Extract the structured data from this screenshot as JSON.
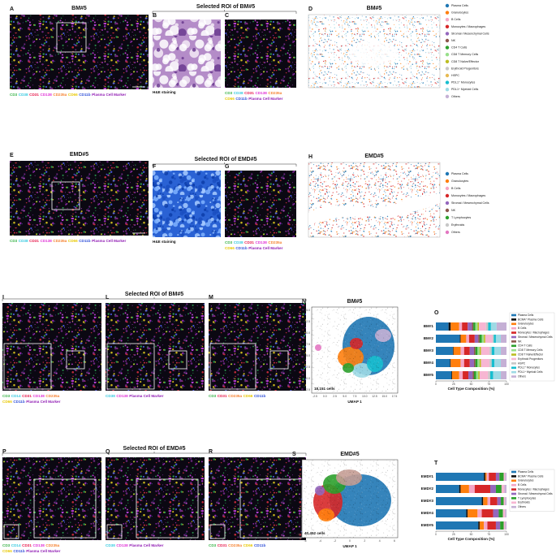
{
  "figure": {
    "roi_titles": [
      "Selected ROI of BM#5",
      "Selected ROI of EMD#5",
      "Selected ROI of BM#5",
      "Selected ROI of EMD#5"
    ],
    "panels": [
      {
        "label": "A",
        "title": "BM#5",
        "scale": "100 µm",
        "markers": [
          [
            {
              "text": "CD3",
              "color": "#3cb44b"
            },
            {
              "text": "CD38",
              "color": "#36c9e0"
            },
            {
              "text": "CD31",
              "color": "#e6194b"
            },
            {
              "text": "CD138",
              "color": "#e032d6"
            },
            {
              "text": "CD235a",
              "color": "#f58231"
            },
            {
              "text": "CD66",
              "color": "#e8c800"
            },
            {
              "text": "CD11b",
              "color": "#3050d8"
            },
            {
              "text": "Plasma Cell Marker",
              "color": "#911eb4"
            }
          ]
        ]
      },
      {
        "label": "B",
        "caption": "H&E staining"
      },
      {
        "label": "C",
        "markers": [
          [
            {
              "text": "CD3",
              "color": "#3cb44b"
            },
            {
              "text": "CD38",
              "color": "#36c9e0"
            },
            {
              "text": "CD31",
              "color": "#e6194b"
            },
            {
              "text": "CD138",
              "color": "#e032d6"
            },
            {
              "text": "CD235a",
              "color": "#f58231"
            }
          ],
          [
            {
              "text": "CD66",
              "color": "#e8c800"
            },
            {
              "text": "CD11b",
              "color": "#3050d8"
            },
            {
              "text": "Plasma Cell Marker",
              "color": "#911eb4"
            }
          ]
        ]
      },
      {
        "label": "D",
        "title": "BM#5",
        "legend": [
          {
            "name": "Plasma Cells",
            "color": "#1f77b4"
          },
          {
            "name": "Granulocytes",
            "color": "#ff7f0e"
          },
          {
            "name": "B Cells",
            "color": "#f4a6c6"
          },
          {
            "name": "Monocytes / Macrophages",
            "color": "#d62728"
          },
          {
            "name": "Stromal / Mesenchymal Cells",
            "color": "#9467bd"
          },
          {
            "name": "NK",
            "color": "#8c564b"
          },
          {
            "name": "CD4 T Cells",
            "color": "#2ca02c"
          },
          {
            "name": "CD8 T Memory Cells",
            "color": "#98df8a"
          },
          {
            "name": "CD8 T Naïve/Effector",
            "color": "#bcbd22"
          },
          {
            "name": "Erythroid Progenitors",
            "color": "#c7c7c7"
          },
          {
            "name": "HSPC",
            "color": "#e7ba52"
          },
          {
            "name": "PDL1⁺ Monocytes",
            "color": "#17becf"
          },
          {
            "name": "PDL1⁺ Myeloid Cells",
            "color": "#9edae5"
          },
          {
            "name": "Others",
            "color": "#c5b0d5"
          }
        ]
      },
      {
        "label": "E",
        "title": "EMD#5",
        "scale": "100 µm",
        "markers": [
          [
            {
              "text": "CD3",
              "color": "#3cb44b"
            },
            {
              "text": "CD38",
              "color": "#36c9e0"
            },
            {
              "text": "CD31",
              "color": "#e6194b"
            },
            {
              "text": "CD138",
              "color": "#e032d6"
            },
            {
              "text": "CD235a",
              "color": "#f58231"
            },
            {
              "text": "CD66",
              "color": "#e8c800"
            },
            {
              "text": "CD11b",
              "color": "#3050d8"
            },
            {
              "text": "Plasma Cell Marker",
              "color": "#911eb4"
            }
          ]
        ]
      },
      {
        "label": "F",
        "caption": "H&E staining"
      },
      {
        "label": "G",
        "markers": [
          [
            {
              "text": "CD3",
              "color": "#3cb44b"
            },
            {
              "text": "CD38",
              "color": "#36c9e0"
            },
            {
              "text": "CD31",
              "color": "#e6194b"
            },
            {
              "text": "CD138",
              "color": "#e032d6"
            },
            {
              "text": "CD235a",
              "color": "#f58231"
            }
          ],
          [
            {
              "text": "CD66",
              "color": "#e8c800"
            },
            {
              "text": "CD11b",
              "color": "#3050d8"
            },
            {
              "text": "Plasma Cell Marker",
              "color": "#911eb4"
            }
          ]
        ]
      },
      {
        "label": "H",
        "title": "EMD#5",
        "legend": [
          {
            "name": "Plasma Cells",
            "color": "#1f77b4"
          },
          {
            "name": "Granulocytes",
            "color": "#ff7f0e"
          },
          {
            "name": "B Cells",
            "color": "#f4a6c6"
          },
          {
            "name": "Monocytes / Macrophages",
            "color": "#d62728"
          },
          {
            "name": "Stromal / Mesenchymal Cells",
            "color": "#9467bd"
          },
          {
            "name": "NK",
            "color": "#8c564b"
          },
          {
            "name": "T Lymphocytes",
            "color": "#2ca02c"
          },
          {
            "name": "Erythroids",
            "color": "#c7c7c7"
          },
          {
            "name": "Others",
            "color": "#e377c2"
          }
        ]
      },
      {
        "label": "I",
        "markers": [
          [
            {
              "text": "CD3",
              "color": "#3cb44b"
            },
            {
              "text": "CD14",
              "color": "#36c9e0"
            },
            {
              "text": "CD31",
              "color": "#e6194b"
            },
            {
              "text": "CD138",
              "color": "#e032d6"
            },
            {
              "text": "CD235a",
              "color": "#f58231"
            }
          ],
          [
            {
              "text": "CD66",
              "color": "#e8c800"
            },
            {
              "text": "CD11b",
              "color": "#3050d8"
            },
            {
              "text": "Plasma Cell Marker",
              "color": "#911eb4"
            }
          ]
        ]
      },
      {
        "label": "L",
        "markers": [
          [
            {
              "text": "CD38",
              "color": "#36c9e0"
            },
            {
              "text": "CD138",
              "color": "#e032d6"
            },
            {
              "text": "Plasma Cell Marker",
              "color": "#911eb4"
            }
          ]
        ]
      },
      {
        "label": "M",
        "markers": [
          [
            {
              "text": "CD3",
              "color": "#3cb44b"
            },
            {
              "text": "CD31",
              "color": "#e6194b"
            },
            {
              "text": "CD235a",
              "color": "#f58231"
            },
            {
              "text": "CD66",
              "color": "#e8c800"
            },
            {
              "text": "CD11b",
              "color": "#3050d8"
            }
          ]
        ]
      },
      {
        "label": "N",
        "title": "BM#5",
        "x_label": "UMAP 1",
        "y_label": "UMAP 2",
        "cells": "18,151 cells",
        "xticks": [
          "-2.5",
          "0.0",
          "2.5",
          "5.0",
          "7.5",
          "10.0",
          "12.5",
          "15.0",
          "17.5"
        ],
        "yticks": [
          "15.0",
          "12.5",
          "10.0",
          "7.5",
          "5.0",
          "2.5",
          "0.0",
          "-2.5"
        ]
      },
      {
        "label": "P",
        "markers": [
          [
            {
              "text": "CD3",
              "color": "#3cb44b"
            },
            {
              "text": "CD14",
              "color": "#36c9e0"
            },
            {
              "text": "CD31",
              "color": "#e6194b"
            },
            {
              "text": "CD138",
              "color": "#e032d6"
            },
            {
              "text": "CD235a",
              "color": "#f58231"
            }
          ],
          [
            {
              "text": "CD66",
              "color": "#e8c800"
            },
            {
              "text": "CD11b",
              "color": "#3050d8"
            },
            {
              "text": "Plasma Cell Marker",
              "color": "#911eb4"
            }
          ]
        ]
      },
      {
        "label": "Q",
        "markers": [
          [
            {
              "text": "CD38",
              "color": "#36c9e0"
            },
            {
              "text": "CD138",
              "color": "#e032d6"
            },
            {
              "text": "Plasma Cell Marker",
              "color": "#911eb4"
            }
          ]
        ]
      },
      {
        "label": "R",
        "markers": [
          [
            {
              "text": "CD3",
              "color": "#3cb44b"
            },
            {
              "text": "CD31",
              "color": "#e6194b"
            },
            {
              "text": "CD235a",
              "color": "#f58231"
            },
            {
              "text": "CD66",
              "color": "#e8c800"
            },
            {
              "text": "CD11b",
              "color": "#3050d8"
            }
          ]
        ]
      },
      {
        "label": "S",
        "title": "EMD#5",
        "x_label": "UMAP 1",
        "y_label": "UMAP 2",
        "cells": "40,452 cells",
        "xticks": [
          "-6",
          "-4",
          "-2",
          "0",
          "2",
          "4",
          "6"
        ],
        "yticks": [
          "10",
          "5",
          "0",
          "-5",
          "-10"
        ]
      }
    ]
  },
  "chart_data": [
    {
      "type": "bar",
      "label": "O",
      "stacked": true,
      "orientation": "horizontal",
      "x_label": "Cell Type Composition (%)",
      "categories": [
        "BM#1",
        "BM#2",
        "BM#3",
        "BM#4",
        "BM#5"
      ],
      "xlim": [
        0,
        100
      ],
      "xticks": [
        0,
        25,
        50,
        75,
        100
      ],
      "series": [
        {
          "name": "Plasma Cells",
          "color": "#1f77b4",
          "values": [
            18,
            34,
            24,
            20,
            22
          ]
        },
        {
          "name": "BCMA⁺ Plasma Cells",
          "color": "#111111",
          "values": [
            3,
            1,
            1,
            1,
            1
          ]
        },
        {
          "name": "Granulocytes",
          "color": "#ff7f0e",
          "values": [
            12,
            8,
            10,
            14,
            10
          ]
        },
        {
          "name": "B Cells",
          "color": "#f4a6c6",
          "values": [
            4,
            4,
            5,
            5,
            5
          ]
        },
        {
          "name": "Monocytes / Macrophages",
          "color": "#d62728",
          "values": [
            8,
            8,
            8,
            8,
            8
          ]
        },
        {
          "name": "Stromal / Mesenchymal Cells",
          "color": "#9467bd",
          "values": [
            6,
            5,
            6,
            6,
            6
          ]
        },
        {
          "name": "NK",
          "color": "#8c564b",
          "values": [
            2,
            2,
            2,
            2,
            2
          ]
        },
        {
          "name": "CD4 T Cells",
          "color": "#2ca02c",
          "values": [
            3,
            3,
            3,
            3,
            3
          ]
        },
        {
          "name": "CD8 T Memory Cells",
          "color": "#98df8a",
          "values": [
            3,
            3,
            3,
            3,
            3
          ]
        },
        {
          "name": "CD8 T Naïve/Effector",
          "color": "#bcbd22",
          "values": [
            2,
            2,
            2,
            2,
            2
          ]
        },
        {
          "name": "Erythroid Progenitors",
          "color": "#f7b6d2",
          "values": [
            10,
            10,
            12,
            12,
            12
          ]
        },
        {
          "name": "HSPC",
          "color": "#c7c7c7",
          "values": [
            3,
            2,
            3,
            3,
            3
          ]
        },
        {
          "name": "PDL1⁺ Monocytes",
          "color": "#17becf",
          "values": [
            4,
            3,
            4,
            4,
            4
          ]
        },
        {
          "name": "PDL1⁺ Myeloid Cells",
          "color": "#9edae5",
          "values": [
            8,
            7,
            9,
            9,
            11
          ]
        },
        {
          "name": "Others",
          "color": "#c5b0d5",
          "values": [
            14,
            8,
            8,
            8,
            8
          ]
        }
      ]
    },
    {
      "type": "bar",
      "label": "T",
      "stacked": true,
      "orientation": "horizontal",
      "x_label": "Cell Type Composition (%)",
      "categories": [
        "EMD#1",
        "EMD#2",
        "EMD#3",
        "EMD#4",
        "EMD#5"
      ],
      "xlim": [
        0,
        100
      ],
      "xticks": [
        0,
        25,
        50,
        75,
        100
      ],
      "series": [
        {
          "name": "Plasma Cells",
          "color": "#1f77b4",
          "values": [
            68,
            33,
            65,
            43,
            60
          ]
        },
        {
          "name": "BCMA⁺ Plasma Cells",
          "color": "#111111",
          "values": [
            2,
            2,
            2,
            2,
            2
          ]
        },
        {
          "name": "Granulocytes",
          "color": "#ff7f0e",
          "values": [
            2,
            12,
            6,
            14,
            6
          ]
        },
        {
          "name": "B Cells",
          "color": "#f4a6c6",
          "values": [
            3,
            8,
            4,
            6,
            5
          ]
        },
        {
          "name": "Monocytes / Macrophages",
          "color": "#d62728",
          "values": [
            10,
            22,
            10,
            16,
            12
          ]
        },
        {
          "name": "Stromal / Mesenchymal Cells",
          "color": "#9467bd",
          "values": [
            5,
            8,
            5,
            8,
            6
          ]
        },
        {
          "name": "T Lymphocytes",
          "color": "#2ca02c",
          "values": [
            6,
            8,
            4,
            6,
            5
          ]
        },
        {
          "name": "Erythroids",
          "color": "#f7b6d2",
          "values": [
            2,
            4,
            2,
            3,
            2
          ]
        },
        {
          "name": "Others",
          "color": "#c5b0d5",
          "values": [
            2,
            3,
            2,
            2,
            2
          ]
        }
      ]
    }
  ]
}
